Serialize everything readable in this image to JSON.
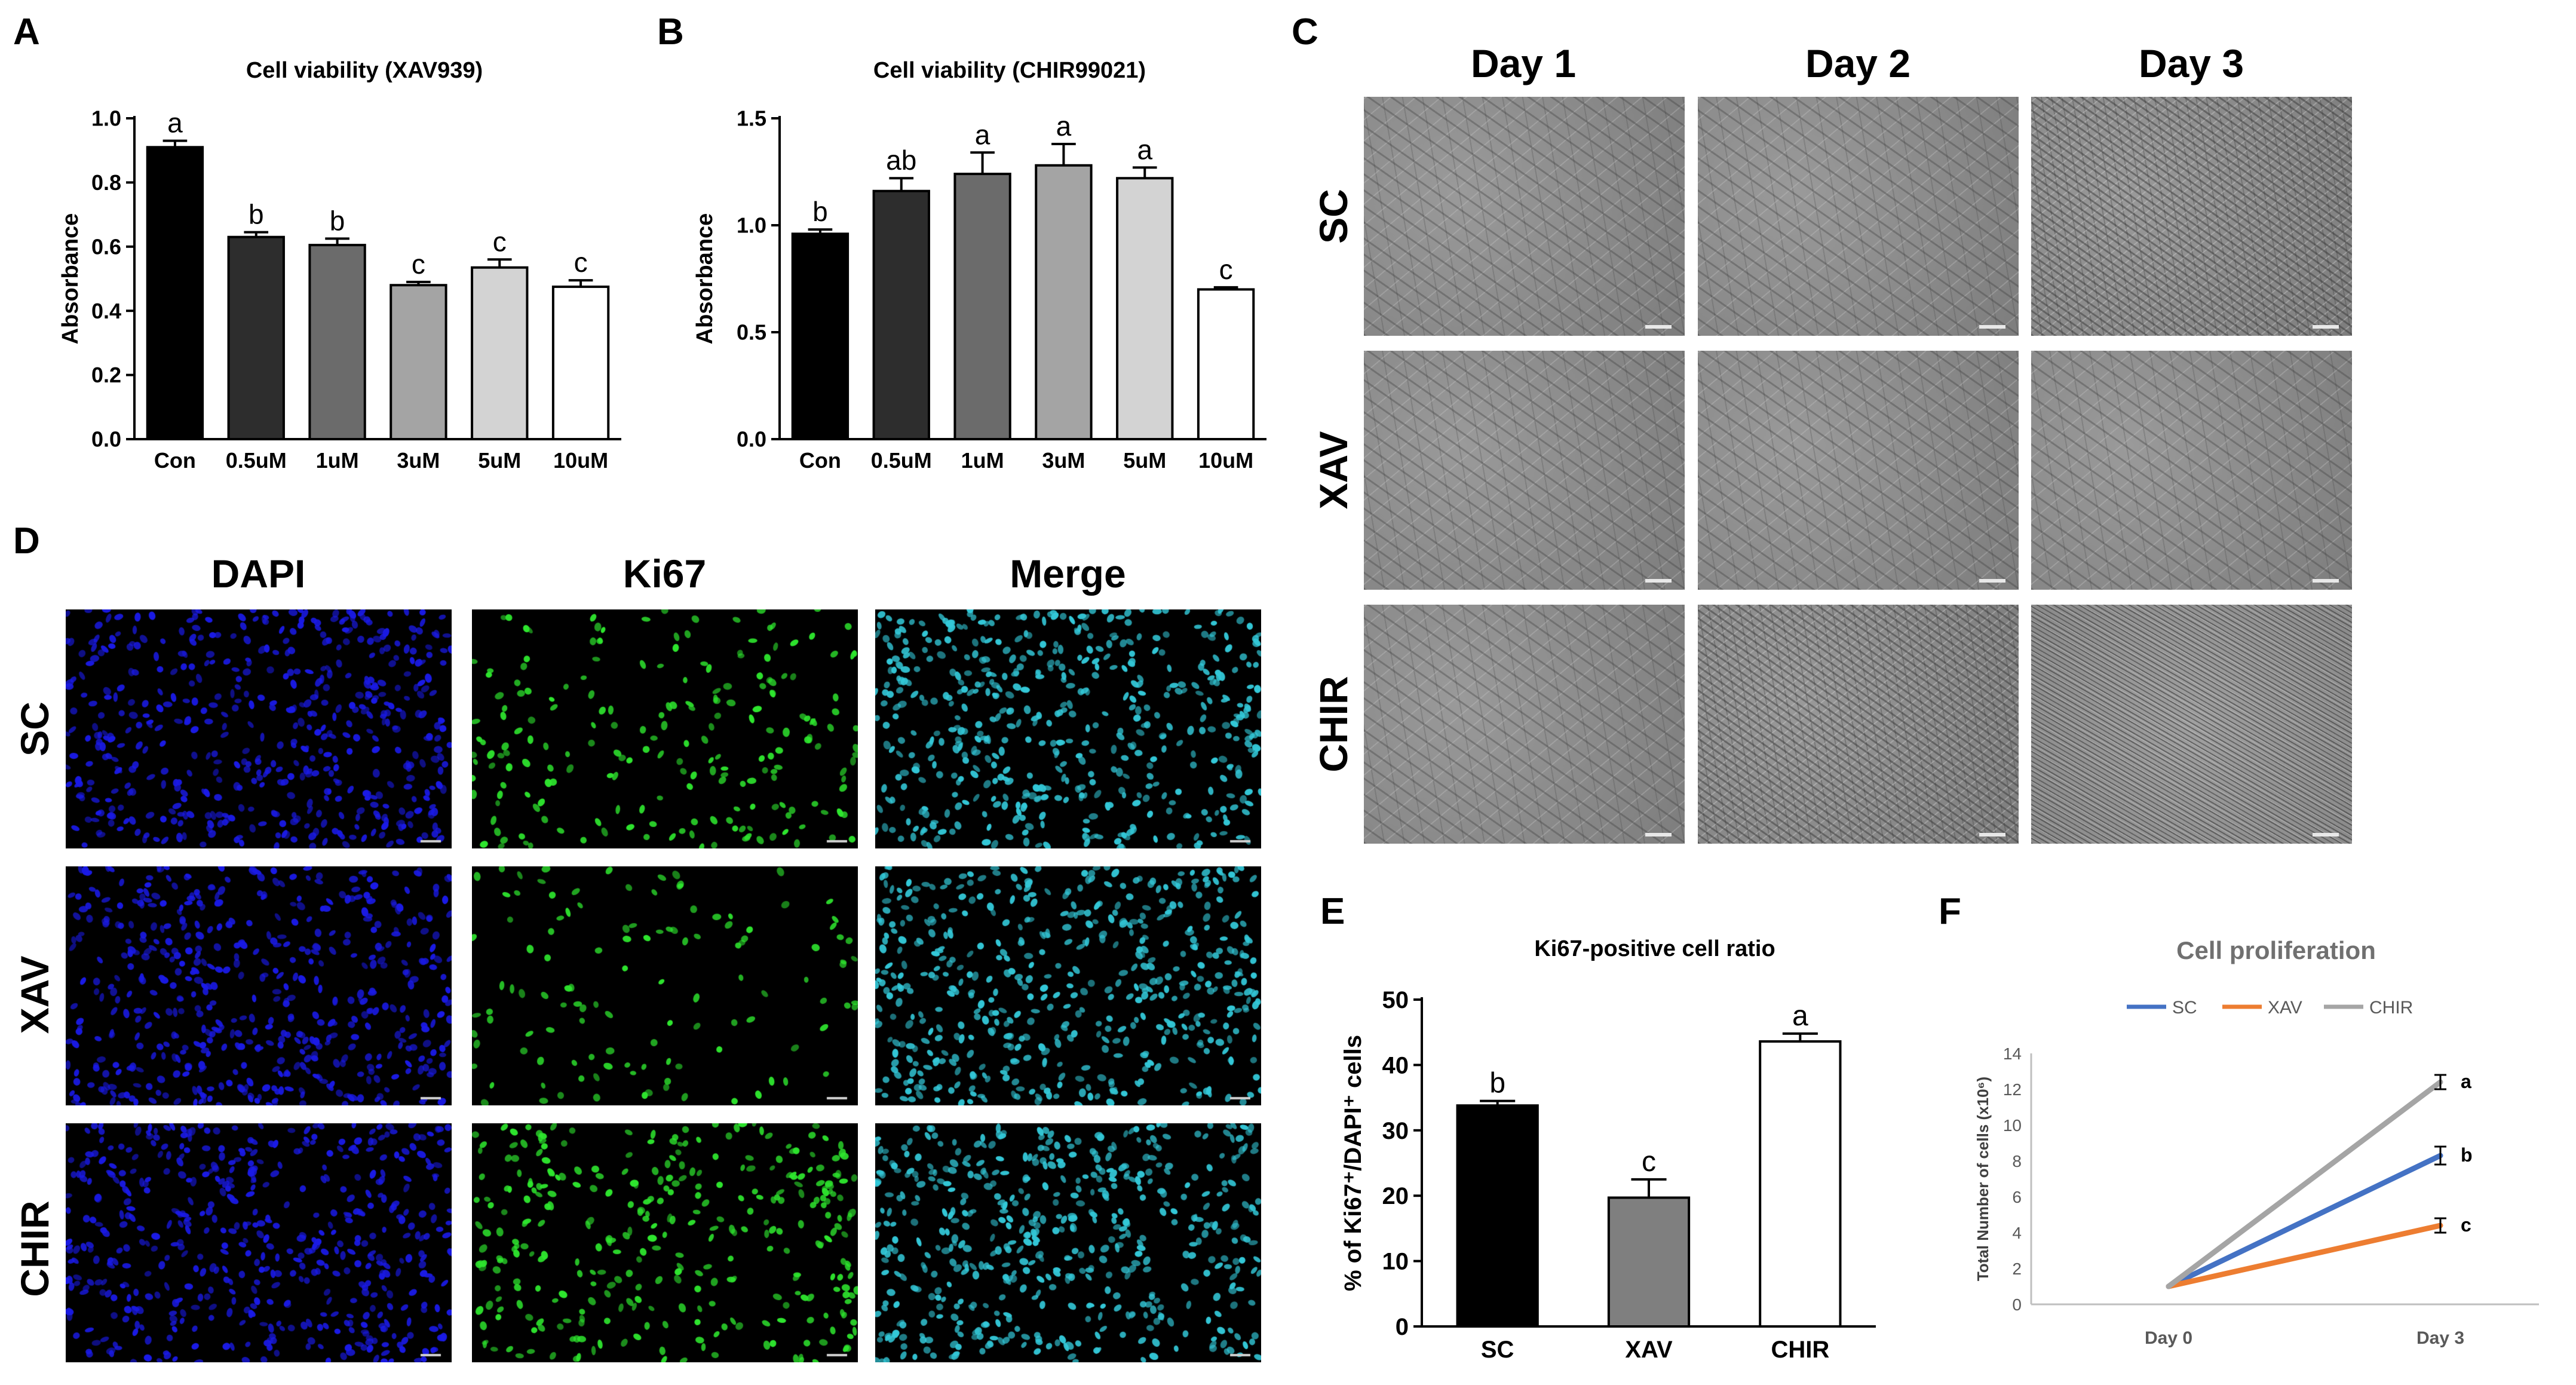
{
  "panels": {
    "A": "A",
    "B": "B",
    "C": "C",
    "D": "D",
    "E": "E",
    "F": "F"
  },
  "panelC": {
    "columns": [
      "Day 1",
      "Day 2",
      "Day 3"
    ],
    "rows": [
      "SC",
      "XAV",
      "CHIR"
    ]
  },
  "panelD": {
    "columns": [
      "DAPI",
      "Ki67",
      "Merge"
    ],
    "rows": [
      "SC",
      "XAV",
      "CHIR"
    ],
    "colors": {
      "DAPI": "#1a1ae6",
      "Ki67": "#2ee62e",
      "Merge": "#33c8d8"
    }
  },
  "chart_data": [
    {
      "id": "A",
      "type": "bar",
      "title": "Cell viability (XAV939)",
      "ylabel": "Absorbance",
      "xlabel": "",
      "categories": [
        "Con",
        "0.5uM",
        "1uM",
        "3uM",
        "5uM",
        "10uM"
      ],
      "values": [
        0.91,
        0.63,
        0.605,
        0.48,
        0.535,
        0.475
      ],
      "errors": [
        0.02,
        0.015,
        0.02,
        0.01,
        0.025,
        0.02
      ],
      "letters": [
        "a",
        "b",
        "b",
        "c",
        "c",
        "c"
      ],
      "colors": [
        "#000000",
        "#2d2d2d",
        "#6b6b6b",
        "#a4a4a4",
        "#d3d3d3",
        "#ffffff"
      ],
      "ylim": [
        0,
        1.0
      ],
      "yticks": [
        "0.0",
        "0.2",
        "0.4",
        "0.6",
        "0.8",
        "1.0"
      ]
    },
    {
      "id": "B",
      "type": "bar",
      "title": "Cell viability (CHIR99021)",
      "ylabel": "Absorbance",
      "xlabel": "",
      "categories": [
        "Con",
        "0.5uM",
        "1uM",
        "3uM",
        "5uM",
        "10uM"
      ],
      "values": [
        0.96,
        1.16,
        1.24,
        1.28,
        1.22,
        0.7
      ],
      "errors": [
        0.02,
        0.06,
        0.1,
        0.1,
        0.05,
        0.01
      ],
      "letters": [
        "b",
        "ab",
        "a",
        "a",
        "a",
        "c"
      ],
      "colors": [
        "#000000",
        "#2d2d2d",
        "#6b6b6b",
        "#a4a4a4",
        "#d3d3d3",
        "#ffffff"
      ],
      "ylim": [
        0,
        1.5
      ],
      "yticks": [
        "0.0",
        "0.5",
        "1.0",
        "1.5"
      ]
    },
    {
      "id": "E",
      "type": "bar",
      "title": "Ki67-positive cell ratio",
      "ylabel": "% of Ki67⁺/DAPI⁺ cells",
      "xlabel": "",
      "categories": [
        "SC",
        "XAV",
        "CHIR"
      ],
      "values": [
        33.8,
        19.7,
        43.6
      ],
      "errors": [
        0.7,
        2.8,
        1.2
      ],
      "letters": [
        "b",
        "c",
        "a"
      ],
      "colors": [
        "#000000",
        "#7f7f7f",
        "#ffffff"
      ],
      "ylim": [
        0,
        50
      ],
      "yticks": [
        "0",
        "10",
        "20",
        "30",
        "40",
        "50"
      ]
    },
    {
      "id": "F",
      "type": "line",
      "title": "Cell proliferation",
      "ylabel": "Total Number of cells (x10⁶)",
      "xlabel": "",
      "x": [
        "Day 0",
        "Day 3"
      ],
      "series": [
        {
          "name": "SC",
          "values": [
            1,
            8.3
          ],
          "error": 0.5,
          "letter": "b",
          "color": "#4472c4"
        },
        {
          "name": "XAV",
          "values": [
            1,
            4.4
          ],
          "error": 0.4,
          "letter": "c",
          "color": "#ed7d31"
        },
        {
          "name": "CHIR",
          "values": [
            1,
            12.4
          ],
          "error": 0.4,
          "letter": "a",
          "color": "#a5a5a5"
        }
      ],
      "ylim": [
        0,
        14
      ],
      "yticks": [
        "0",
        "2",
        "4",
        "6",
        "8",
        "10",
        "12",
        "14"
      ],
      "legend": "top"
    }
  ]
}
